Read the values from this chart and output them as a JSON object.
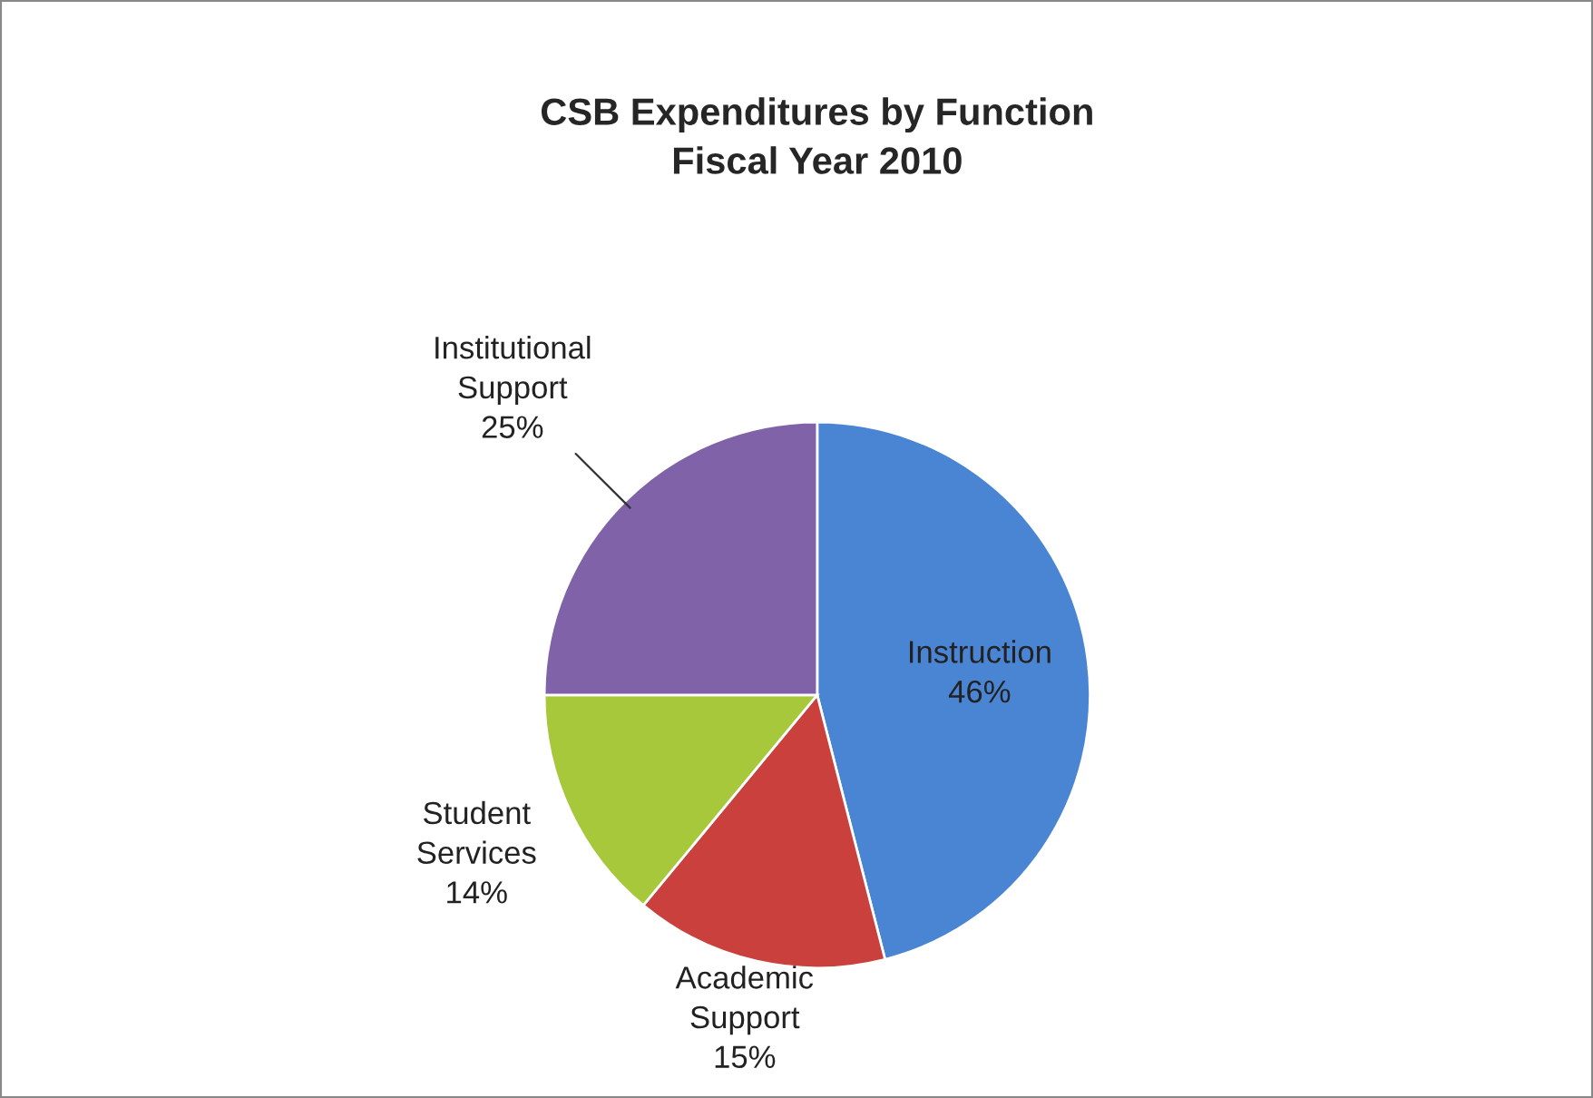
{
  "chart_data": {
    "type": "pie",
    "title": "CSB Expenditures by Function\nFiscal Year 2010",
    "categories": [
      "Instruction",
      "Academic\nSupport",
      "Student\nServices",
      "Institutional\nSupport"
    ],
    "values": [
      46,
      15,
      14,
      25
    ],
    "value_labels": [
      "46%",
      "15%",
      "14%",
      "25%"
    ],
    "colors": [
      "#4a85d3",
      "#c9403c",
      "#a8c83c",
      "#8062a8"
    ],
    "legend": false
  }
}
